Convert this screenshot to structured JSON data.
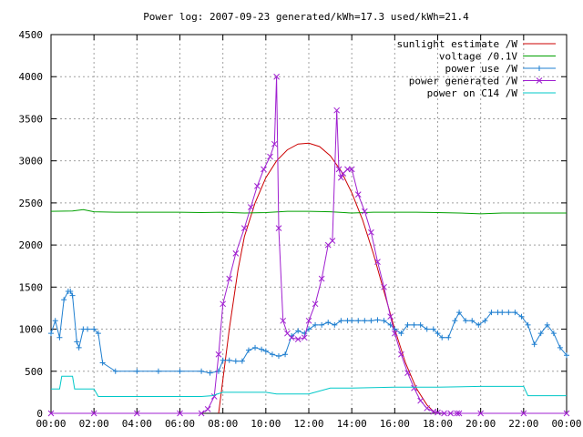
{
  "chart_data": {
    "type": "line",
    "title": "Power log: 2007-09-23 generated/kWh=17.3 used/kWh=21.4",
    "xlabel": "",
    "ylabel": "",
    "x_ticks": [
      "00:00",
      "02:00",
      "04:00",
      "06:00",
      "08:00",
      "10:00",
      "12:00",
      "14:00",
      "16:00",
      "18:00",
      "20:00",
      "22:00",
      "00:00"
    ],
    "y_ticks": [
      0,
      500,
      1000,
      1500,
      2000,
      2500,
      3000,
      3500,
      4000,
      4500
    ],
    "xlim": [
      0,
      24
    ],
    "ylim": [
      0,
      4500
    ],
    "grid": true,
    "legend_position": "top-right",
    "series": [
      {
        "name": "sunlight estimate /W",
        "color": "#cc0000",
        "marker": "none",
        "x": [
          7.8,
          8.0,
          8.3,
          8.7,
          9.0,
          9.5,
          10.0,
          10.5,
          11.0,
          11.5,
          12.0,
          12.5,
          13.0,
          13.5,
          14.0,
          14.5,
          15.0,
          15.5,
          16.0,
          16.5,
          17.0,
          17.5,
          17.9
        ],
        "y": [
          0,
          400,
          1000,
          1700,
          2100,
          2500,
          2800,
          3000,
          3130,
          3200,
          3210,
          3170,
          3060,
          2880,
          2620,
          2300,
          1900,
          1450,
          1000,
          600,
          300,
          100,
          0
        ]
      },
      {
        "name": "voltage /0.1V",
        "color": "#00a000",
        "marker": "none",
        "x": [
          0,
          1.0,
          1.5,
          2.0,
          3.0,
          4.0,
          5.0,
          6.0,
          7.0,
          8.0,
          9.0,
          10.0,
          11.0,
          12.0,
          13.0,
          14.0,
          15.0,
          16.0,
          17.0,
          18.0,
          19.0,
          20.0,
          21.0,
          22.0,
          23.0,
          24.0
        ],
        "y": [
          2400,
          2405,
          2420,
          2395,
          2390,
          2390,
          2390,
          2390,
          2385,
          2390,
          2380,
          2385,
          2400,
          2400,
          2395,
          2380,
          2390,
          2390,
          2390,
          2385,
          2380,
          2370,
          2380,
          2380,
          2380,
          2380
        ]
      },
      {
        "name": "power use /W",
        "color": "#1f7fd0",
        "marker": "plus",
        "x": [
          0.0,
          0.2,
          0.4,
          0.6,
          0.8,
          0.9,
          1.0,
          1.2,
          1.3,
          1.5,
          1.7,
          2.0,
          2.2,
          2.4,
          3.0,
          4.0,
          5.0,
          6.0,
          7.0,
          7.4,
          7.8,
          8.0,
          8.3,
          8.6,
          8.9,
          9.2,
          9.5,
          9.8,
          10.0,
          10.3,
          10.6,
          10.9,
          11.2,
          11.5,
          11.8,
          12.0,
          12.3,
          12.6,
          12.9,
          13.2,
          13.5,
          13.8,
          14.0,
          14.3,
          14.6,
          14.9,
          15.2,
          15.5,
          15.8,
          16.0,
          16.3,
          16.6,
          16.9,
          17.2,
          17.5,
          17.8,
          18.0,
          18.2,
          18.5,
          18.8,
          19.0,
          19.3,
          19.6,
          19.9,
          20.2,
          20.5,
          20.8,
          21.0,
          21.3,
          21.6,
          21.9,
          22.2,
          22.5,
          22.8,
          23.1,
          23.4,
          23.7,
          24.0
        ],
        "y": [
          950,
          1100,
          900,
          1350,
          1450,
          1450,
          1400,
          850,
          780,
          1000,
          1000,
          1000,
          950,
          600,
          500,
          500,
          500,
          500,
          500,
          480,
          500,
          630,
          630,
          620,
          620,
          750,
          780,
          760,
          740,
          700,
          680,
          700,
          920,
          980,
          950,
          1000,
          1050,
          1050,
          1080,
          1050,
          1100,
          1100,
          1100,
          1100,
          1100,
          1100,
          1110,
          1100,
          1050,
          1000,
          950,
          1050,
          1050,
          1050,
          1000,
          1000,
          950,
          900,
          900,
          1100,
          1200,
          1100,
          1100,
          1050,
          1100,
          1200,
          1200,
          1200,
          1200,
          1200,
          1150,
          1050,
          820,
          950,
          1050,
          950,
          780,
          690
        ]
      },
      {
        "name": "power generated /W",
        "color": "#a020d0",
        "marker": "cross",
        "x": [
          0,
          2,
          4,
          6,
          7.0,
          7.3,
          7.6,
          7.8,
          8.0,
          8.3,
          8.6,
          9.0,
          9.3,
          9.6,
          9.9,
          10.2,
          10.4,
          10.5,
          10.6,
          10.8,
          11.0,
          11.2,
          11.5,
          11.8,
          12.0,
          12.3,
          12.6,
          12.9,
          13.1,
          13.3,
          13.4,
          13.5,
          13.6,
          13.8,
          14.0,
          14.3,
          14.6,
          14.9,
          15.2,
          15.5,
          15.8,
          16.0,
          16.3,
          16.6,
          16.9,
          17.2,
          17.5,
          17.8,
          18.0,
          18.3,
          18.6,
          18.9,
          19.0,
          20,
          22,
          24
        ],
        "y": [
          0,
          0,
          0,
          0,
          0,
          50,
          200,
          700,
          1300,
          1600,
          1900,
          2200,
          2450,
          2700,
          2900,
          3050,
          3200,
          4000,
          2200,
          1100,
          950,
          900,
          880,
          900,
          1100,
          1300,
          1600,
          2000,
          2050,
          3600,
          2900,
          2800,
          2850,
          2900,
          2900,
          2600,
          2400,
          2150,
          1800,
          1500,
          1150,
          950,
          700,
          480,
          300,
          150,
          60,
          20,
          10,
          0,
          0,
          0,
          0,
          0,
          0,
          0
        ]
      },
      {
        "name": "power on C14 /W",
        "color": "#00c8c8",
        "marker": "none",
        "x": [
          0,
          0.4,
          0.5,
          1.0,
          1.1,
          2.0,
          2.2,
          6.0,
          7.0,
          7.5,
          8.0,
          10.0,
          10.5,
          12.0,
          13.0,
          14.0,
          16.0,
          17.0,
          18.0,
          20.0,
          22.0,
          22.2,
          24.0
        ],
        "y": [
          290,
          290,
          440,
          440,
          290,
          290,
          200,
          200,
          200,
          210,
          250,
          250,
          230,
          230,
          300,
          300,
          310,
          310,
          310,
          320,
          320,
          210,
          210
        ]
      }
    ]
  }
}
